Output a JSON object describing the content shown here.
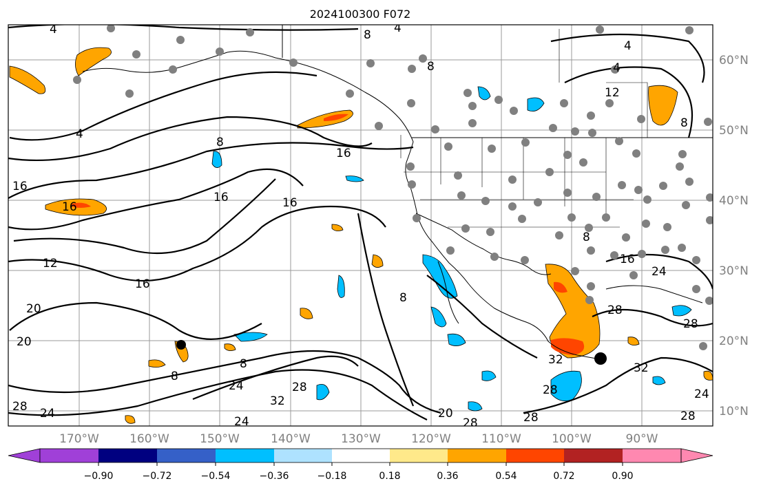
{
  "title": "2024100300 F072",
  "longitude_labels": [
    "170°W",
    "160°W",
    "150°W",
    "140°W",
    "130°W",
    "120°W",
    "110°W",
    "100°W",
    "90°W"
  ],
  "latitude_labels": [
    "60°N",
    "50°N",
    "40°N",
    "30°N",
    "20°N",
    "10°N"
  ],
  "colorbar": {
    "colors": [
      "#a040d8",
      "#000080",
      "#3560c8",
      "#00bfff",
      "#aee2ff",
      "#ffffff",
      "#ffe98a",
      "#ffa500",
      "#ff4500",
      "#b22222",
      "#ff88b0"
    ],
    "tick_labels": [
      "−0.90",
      "−0.72",
      "−0.54",
      "−0.36",
      "−0.18",
      "0.18",
      "0.36",
      "0.54",
      "0.72",
      "0.90"
    ]
  },
  "contour_labels": [
    "4",
    "4",
    "4",
    "4",
    "4",
    "8",
    "8",
    "8",
    "8",
    "8",
    "8",
    "8",
    "8",
    "12",
    "12",
    "16",
    "16",
    "16",
    "16",
    "16",
    "16",
    "16",
    "20",
    "20",
    "20",
    "24",
    "24",
    "24",
    "24",
    "24",
    "28",
    "28",
    "28",
    "28",
    "28",
    "28",
    "28",
    "28",
    "32",
    "32",
    "32"
  ],
  "colors": {
    "land_border": "#000000",
    "contour": "#000000",
    "grid": "#9a9a9a",
    "station": "#808080",
    "station_dark": "#000000"
  }
}
